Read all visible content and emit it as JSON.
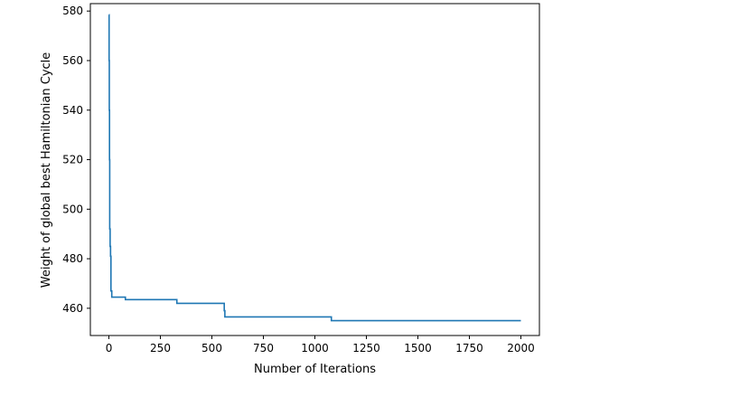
{
  "chart_data": {
    "type": "line",
    "title": "",
    "xlabel": "Number of Iterations",
    "ylabel": "Weight of global best Hamiltonian Cycle",
    "xlim": [
      -90,
      2090
    ],
    "ylim": [
      449,
      583
    ],
    "x_ticks": [
      0,
      250,
      500,
      750,
      1000,
      1250,
      1500,
      1750,
      2000
    ],
    "y_ticks": [
      460,
      480,
      500,
      520,
      540,
      560,
      580
    ],
    "grid": false,
    "line_color": "#1f77b4",
    "series": [
      {
        "x": [
          0,
          1,
          2,
          3,
          4,
          6,
          8,
          10,
          12,
          14,
          20,
          50,
          80,
          330,
          560,
          563,
          1080,
          2000
        ],
        "values": [
          578.5,
          560,
          540,
          520,
          492,
          485,
          481,
          467,
          467,
          464.5,
          464.5,
          464.5,
          463.5,
          462,
          459,
          456.5,
          455,
          455
        ]
      }
    ]
  }
}
